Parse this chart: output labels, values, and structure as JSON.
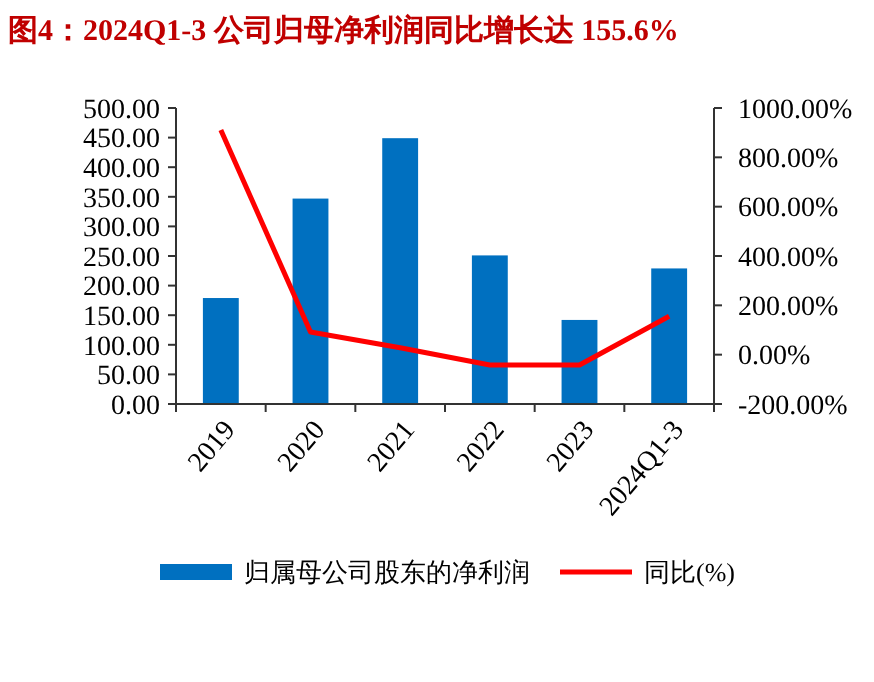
{
  "chart_data": {
    "type": "bar",
    "title": "图4：2024Q1-3 公司归母净利润同比增长达 155.6%",
    "categories": [
      "2019",
      "2020",
      "2021",
      "2022",
      "2023",
      "2024Q1-3"
    ],
    "series": [
      {
        "name": "归属母公司股东的净利润",
        "color": "#0070c0",
        "values": [
          179,
          347,
          449,
          251,
          142,
          229
        ]
      },
      {
        "name": "同比(%)",
        "type": "line",
        "axis": "y2",
        "color": "#ff0000",
        "values": [
          911,
          92,
          28,
          -42,
          -42,
          155.6
        ]
      }
    ],
    "ylim": [
      0,
      500
    ],
    "yticks": [
      {
        "value": 0,
        "label": "0.00"
      },
      {
        "value": 50,
        "label": "50.00"
      },
      {
        "value": 100,
        "label": "100.00"
      },
      {
        "value": 150,
        "label": "150.00"
      },
      {
        "value": 200,
        "label": "200.00"
      },
      {
        "value": 250,
        "label": "250.00"
      },
      {
        "value": 300,
        "label": "300.00"
      },
      {
        "value": 350,
        "label": "350.00"
      },
      {
        "value": 400,
        "label": "400.00"
      },
      {
        "value": 450,
        "label": "450.00"
      },
      {
        "value": 500,
        "label": "500.00"
      }
    ],
    "y2lim": [
      -200,
      1000
    ],
    "y2ticks": [
      {
        "value": -200,
        "label": "-200.00%"
      },
      {
        "value": 0,
        "label": "0.00%"
      },
      {
        "value": 200,
        "label": "200.00%"
      },
      {
        "value": 400,
        "label": "400.00%"
      },
      {
        "value": 600,
        "label": "600.00%"
      },
      {
        "value": 800,
        "label": "800.00%"
      },
      {
        "value": 1000,
        "label": "1000.00%"
      }
    ],
    "legend": "bottom",
    "marker": "none",
    "line_style": "solid",
    "grid": false
  }
}
